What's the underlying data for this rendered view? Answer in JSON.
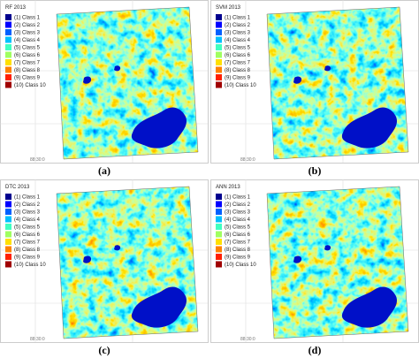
{
  "panels": [
    {
      "title": "RF 2013",
      "caption": "(a)",
      "coordinate": "88:30:0"
    },
    {
      "title": "SVM 2013",
      "caption": "(b)",
      "coordinate": "88:30:0"
    },
    {
      "title": "DTC 2013",
      "caption": "(c)",
      "coordinate": "88:30:0"
    },
    {
      "title": "ANN 2013",
      "caption": "(d)",
      "coordinate": "88:30:0"
    }
  ],
  "legend": {
    "items": [
      "(1) Class 1",
      "(2) Class 2",
      "(3) Class 3",
      "(4) Class 4",
      "(5) Class 5",
      "(6) Class 6",
      "(7) Class 7",
      "(8) Class 8",
      "(9) Class 9",
      "(10) Class 10"
    ],
    "colors": [
      "#00008f",
      "#0000ff",
      "#0060ff",
      "#00c0ff",
      "#40ffc0",
      "#a0ff60",
      "#ffe000",
      "#ff8000",
      "#ff2000",
      "#a00000"
    ]
  }
}
